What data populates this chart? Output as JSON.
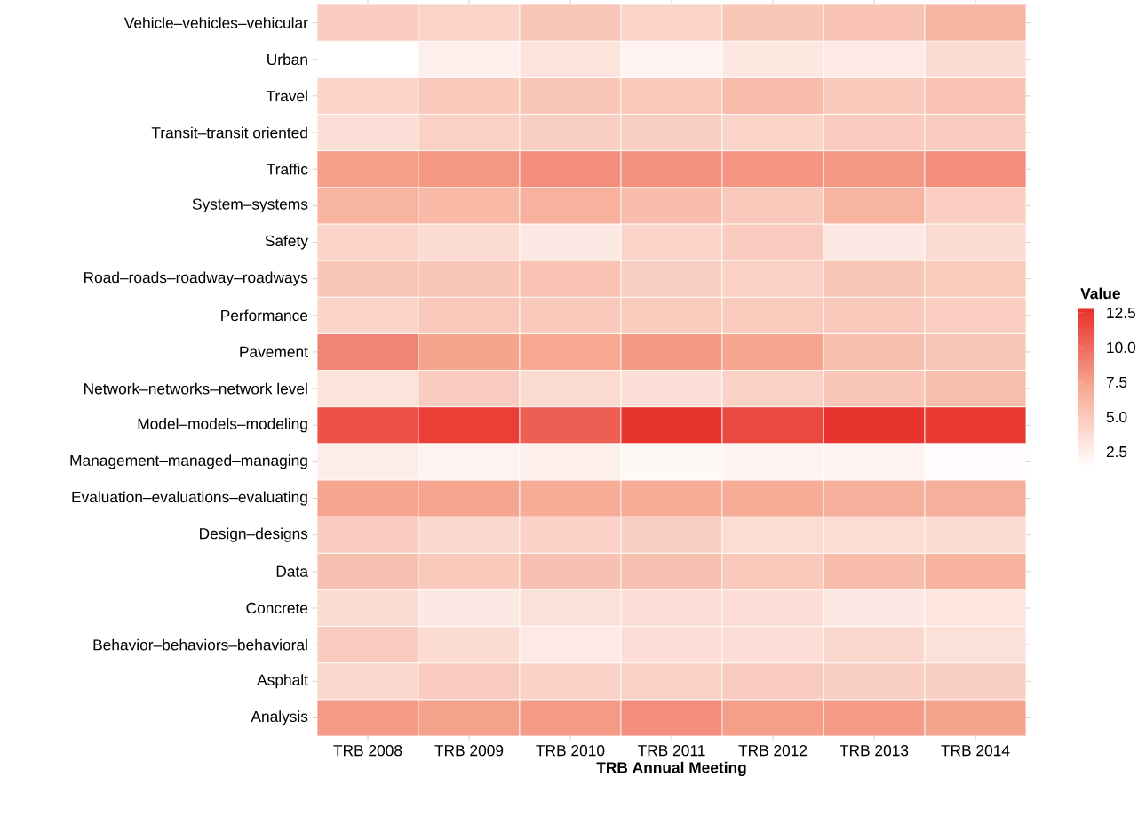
{
  "chart_data": {
    "type": "heatmap",
    "xlabel": "TRB Annual Meeting",
    "legend_title": "Value",
    "categories": [
      "TRB 2008",
      "TRB 2009",
      "TRB 2010",
      "TRB 2011",
      "TRB 2012",
      "TRB 2013",
      "TRB 2014"
    ],
    "y_categories": [
      "Vehicle–vehicles–vehicular",
      "Urban",
      "Travel",
      "Transit–transit oriented",
      "Traffic",
      "System–systems",
      "Safety",
      "Road–roads–roadway–roadways",
      "Performance",
      "Pavement",
      "Network–networks–network level",
      "Model–models–modeling",
      "Management–managed–managing",
      "Evaluation–evaluations–evaluating",
      "Design–designs",
      "Data",
      "Concrete",
      "Behavior–behaviors–behavioral",
      "Asphalt",
      "Analysis"
    ],
    "cells": [
      [
        4.8,
        4.3,
        5.3,
        4.2,
        5.2,
        5.4,
        6.3
      ],
      [
        1.4,
        2.4,
        3.2,
        2.2,
        3.0,
        2.8,
        3.8
      ],
      [
        4.2,
        5.0,
        5.2,
        5.1,
        5.9,
        5.0,
        5.4
      ],
      [
        3.5,
        4.5,
        4.6,
        4.6,
        4.2,
        4.8,
        4.8
      ],
      [
        7.6,
        8.0,
        8.4,
        8.3,
        8.1,
        8.0,
        8.4
      ],
      [
        6.4,
        6.1,
        6.6,
        5.8,
        5.0,
        6.4,
        4.7
      ],
      [
        4.3,
        3.8,
        2.9,
        4.3,
        4.8,
        2.9,
        3.8
      ],
      [
        5.2,
        5.2,
        5.5,
        4.6,
        4.5,
        5.2,
        4.9
      ],
      [
        4.2,
        5.1,
        5.0,
        4.9,
        4.9,
        5.0,
        4.7
      ],
      [
        8.9,
        7.4,
        7.2,
        7.9,
        7.3,
        5.7,
        5.3
      ],
      [
        3.3,
        4.8,
        3.9,
        3.5,
        4.5,
        5.2,
        5.7
      ],
      [
        11.3,
        12.1,
        10.6,
        12.6,
        11.7,
        12.6,
        12.3
      ],
      [
        2.7,
        2.2,
        2.5,
        1.9,
        2.1,
        2.2,
        1.6
      ],
      [
        7.3,
        7.3,
        7.0,
        7.0,
        7.0,
        6.8,
        6.8
      ],
      [
        4.8,
        4.0,
        4.4,
        4.6,
        3.7,
        3.7,
        3.8
      ],
      [
        5.6,
        5.0,
        5.6,
        5.6,
        5.0,
        5.9,
        6.5
      ],
      [
        3.8,
        2.9,
        3.4,
        3.5,
        3.6,
        2.9,
        3.1
      ],
      [
        4.8,
        3.8,
        2.8,
        3.6,
        3.6,
        4.0,
        3.4
      ],
      [
        4.0,
        4.8,
        4.4,
        4.5,
        4.8,
        4.6,
        4.6
      ],
      [
        7.8,
        7.5,
        7.8,
        8.4,
        7.6,
        7.8,
        7.4
      ]
    ],
    "clim": [
      1.4,
      12.8
    ],
    "cticks": [
      2.5,
      {
        "value": 5,
        "label": "5.0"
      },
      7.5,
      {
        "value": 10,
        "label": "10.0"
      },
      12.5
    ]
  }
}
